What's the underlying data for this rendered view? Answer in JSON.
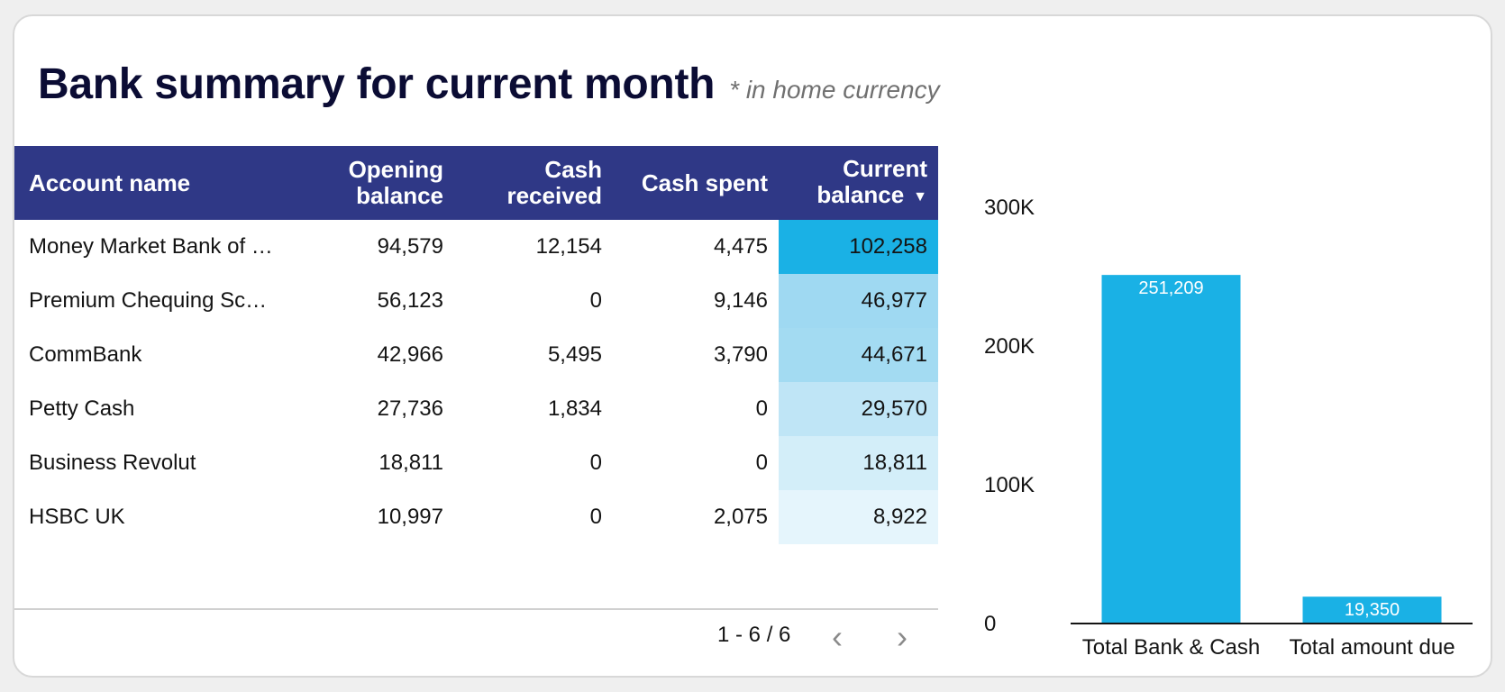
{
  "header": {
    "title": "Bank summary for current month",
    "subtitle": "* in home currency"
  },
  "table": {
    "columns": {
      "account_name": "Account name",
      "opening_line1": "Opening",
      "opening_line2": "balance",
      "received_line1": "Cash",
      "received_line2": "received",
      "spent": "Cash spent",
      "current_line1": "Current",
      "current_line2": "balance"
    },
    "sort_icon": "sort-descending-icon",
    "rows": [
      {
        "name": "Money Market Bank of …",
        "opening": "94,579",
        "received": "12,154",
        "spent": "4,475",
        "current": "102,258",
        "heat": "#1ab1e5"
      },
      {
        "name": "Premium Chequing Sc…",
        "opening": "56,123",
        "received": "0",
        "spent": "9,146",
        "current": "46,977",
        "heat": "#9fd9f2"
      },
      {
        "name": "CommBank",
        "opening": "42,966",
        "received": "5,495",
        "spent": "3,790",
        "current": "44,671",
        "heat": "#a3dbf2"
      },
      {
        "name": "Petty Cash",
        "opening": "27,736",
        "received": "1,834",
        "spent": "0",
        "current": "29,570",
        "heat": "#bfe5f6"
      },
      {
        "name": "Business Revolut",
        "opening": "18,811",
        "received": "0",
        "spent": "0",
        "current": "18,811",
        "heat": "#d3eef9"
      },
      {
        "name": "HSBC UK",
        "opening": "10,997",
        "received": "0",
        "spent": "2,075",
        "current": "8,922",
        "heat": "#e5f5fc"
      }
    ],
    "pagination": {
      "label": "1 - 6 / 6"
    }
  },
  "chart_data": {
    "type": "bar",
    "categories": [
      "Total Bank & Cash",
      "Total amount due"
    ],
    "values": [
      251209,
      19350
    ],
    "value_labels": [
      "251,209",
      "19,350"
    ],
    "ylim": [
      0,
      300000
    ],
    "yticks": [
      0,
      100000,
      200000,
      300000
    ],
    "ytick_labels": [
      "0",
      "100K",
      "200K",
      "300K"
    ],
    "title": "",
    "xlabel": "",
    "ylabel": "",
    "bar_color": "#1ab1e5"
  },
  "colors": {
    "header_bg": "#2f3886",
    "title": "#0b0c34"
  }
}
